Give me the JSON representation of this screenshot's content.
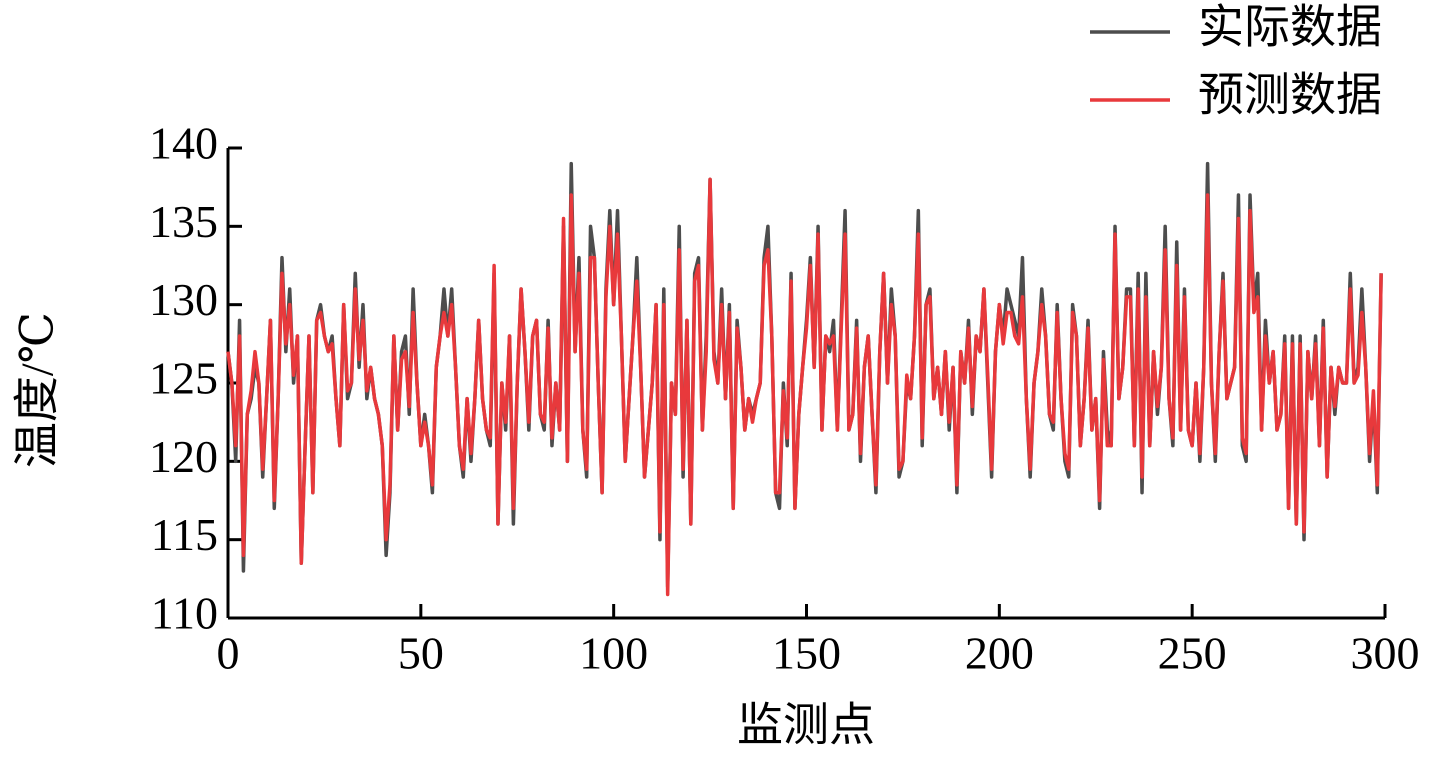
{
  "chart_data": {
    "type": "line",
    "xlabel": "监测点",
    "ylabel": "温度/℃",
    "xlim": [
      0,
      300
    ],
    "xticks": [
      0,
      50,
      100,
      150,
      200,
      250,
      300
    ],
    "ylim": [
      110,
      140
    ],
    "yticks": [
      110,
      115,
      120,
      125,
      130,
      135,
      140
    ],
    "legend": "upper right",
    "x": [
      0,
      1,
      2,
      3,
      4,
      5,
      6,
      7,
      8,
      9,
      10,
      11,
      12,
      13,
      14,
      15,
      16,
      17,
      18,
      19,
      20,
      21,
      22,
      23,
      24,
      25,
      26,
      27,
      28,
      29,
      30,
      31,
      32,
      33,
      34,
      35,
      36,
      37,
      38,
      39,
      40,
      41,
      42,
      43,
      44,
      45,
      46,
      47,
      48,
      49,
      50,
      51,
      52,
      53,
      54,
      55,
      56,
      57,
      58,
      59,
      60,
      61,
      62,
      63,
      64,
      65,
      66,
      67,
      68,
      69,
      70,
      71,
      72,
      73,
      74,
      75,
      76,
      77,
      78,
      79,
      80,
      81,
      82,
      83,
      84,
      85,
      86,
      87,
      88,
      89,
      90,
      91,
      92,
      93,
      94,
      95,
      96,
      97,
      98,
      99,
      100,
      101,
      102,
      103,
      104,
      105,
      106,
      107,
      108,
      109,
      110,
      111,
      112,
      113,
      114,
      115,
      116,
      117,
      118,
      119,
      120,
      121,
      122,
      123,
      124,
      125,
      126,
      127,
      128,
      129,
      130,
      131,
      132,
      133,
      134,
      135,
      136,
      137,
      138,
      139,
      140,
      141,
      142,
      143,
      144,
      145,
      146,
      147,
      148,
      149,
      150,
      151,
      152,
      153,
      154,
      155,
      156,
      157,
      158,
      159,
      160,
      161,
      162,
      163,
      164,
      165,
      166,
      167,
      168,
      169,
      170,
      171,
      172,
      173,
      174,
      175,
      176,
      177,
      178,
      179,
      180,
      181,
      182,
      183,
      184,
      185,
      186,
      187,
      188,
      189,
      190,
      191,
      192,
      193,
      194,
      195,
      196,
      197,
      198,
      199,
      200,
      201,
      202,
      203,
      204,
      205,
      206,
      207,
      208,
      209,
      210,
      211,
      212,
      213,
      214,
      215,
      216,
      217,
      218,
      219,
      220,
      221,
      222,
      223,
      224,
      225,
      226,
      227,
      228,
      229,
      230,
      231,
      232,
      233,
      234,
      235,
      236,
      237,
      238,
      239,
      240,
      241,
      242,
      243,
      244,
      245,
      246,
      247,
      248,
      249,
      250,
      251,
      252,
      253,
      254,
      255,
      256,
      257,
      258,
      259,
      260,
      261,
      262,
      263,
      264,
      265,
      266,
      267,
      268,
      269,
      270,
      271,
      272,
      273,
      274,
      275,
      276,
      277,
      278,
      279,
      280,
      281,
      282,
      283,
      284,
      285,
      286,
      287,
      288,
      289,
      290,
      291,
      292,
      293,
      294,
      295,
      296,
      297,
      298,
      299
    ],
    "series": [
      {
        "name": "实际数据",
        "color": "#4d4d4d",
        "values": [
          127,
          125,
          120,
          129,
          113,
          123,
          124,
          126,
          125,
          119,
          124,
          129,
          117,
          124,
          133,
          127,
          131,
          125,
          128,
          113.5,
          121,
          128,
          118,
          129,
          130,
          128,
          127,
          128,
          124,
          121,
          130,
          124,
          125,
          132,
          126,
          130,
          124,
          126,
          124,
          123,
          121,
          114,
          118,
          128,
          122,
          127,
          128,
          123,
          131,
          125,
          121,
          123,
          121,
          118,
          126,
          128,
          131,
          128,
          131,
          126,
          121,
          119,
          124,
          120,
          124,
          129,
          124,
          122,
          121,
          132,
          116,
          125,
          122,
          128,
          116,
          125,
          131,
          127,
          122,
          128,
          129,
          123,
          122,
          129,
          121,
          125,
          122,
          135,
          120,
          139,
          127,
          133,
          122,
          119,
          135,
          133,
          125,
          118,
          131,
          136,
          130,
          136,
          128,
          120,
          124,
          128,
          133,
          126,
          119,
          122,
          125,
          130,
          115,
          131,
          112,
          125,
          123,
          135,
          119,
          129,
          116,
          132,
          133,
          122,
          128,
          138,
          127,
          125,
          131,
          124,
          130,
          117,
          129,
          126,
          122,
          124,
          123,
          124,
          125,
          133,
          135,
          128,
          118,
          117,
          125,
          121,
          132,
          117,
          123,
          126,
          129,
          133,
          126,
          135,
          122,
          128,
          127,
          129,
          122,
          129,
          136,
          122,
          123,
          129,
          120,
          126,
          128,
          123,
          118,
          127,
          132,
          125,
          131,
          128,
          119,
          120,
          125,
          124,
          128,
          136,
          121,
          130,
          131,
          124,
          126,
          123,
          127,
          122,
          126,
          118,
          127,
          125,
          129,
          123,
          128,
          127,
          131,
          125,
          119,
          127,
          130,
          128,
          131,
          130,
          129,
          128,
          133,
          124,
          119,
          125,
          127,
          131,
          128,
          123,
          122,
          130,
          124,
          120,
          119,
          130,
          128,
          121,
          124,
          129,
          122,
          124,
          117,
          127,
          122,
          121,
          135,
          124,
          126,
          131,
          131,
          121,
          132,
          118,
          132,
          121,
          127,
          123,
          126,
          135,
          124,
          121,
          134,
          122,
          131,
          122,
          121,
          125,
          120,
          126,
          139,
          125,
          120,
          127,
          132,
          124,
          125,
          126,
          137,
          121,
          120,
          137,
          130,
          132,
          122,
          129,
          125,
          127,
          122,
          123,
          128,
          117,
          128,
          116,
          128,
          115,
          127,
          124,
          128,
          121,
          129,
          119,
          126,
          123,
          126,
          125,
          125,
          132,
          125,
          126,
          131,
          126,
          120,
          124,
          118,
          132
        ]
      },
      {
        "name": "预测数据",
        "color": "#e8393c",
        "values": [
          127,
          125,
          121,
          128,
          114,
          123,
          124.5,
          127,
          125,
          119.5,
          124,
          129,
          117.5,
          124,
          132,
          127.5,
          130,
          125.5,
          128,
          113.5,
          121,
          128,
          118,
          129,
          129.5,
          128,
          127,
          127.5,
          124,
          121,
          130,
          124.5,
          125,
          131,
          126.5,
          129,
          124.5,
          126,
          124,
          123,
          121,
          115,
          118.5,
          128,
          122,
          126.5,
          127,
          123.5,
          129.5,
          125,
          121,
          122.5,
          121,
          118.5,
          126,
          128,
          129.5,
          128,
          130,
          126,
          121,
          119.5,
          124,
          120.5,
          124,
          129,
          124,
          122,
          121.5,
          132.5,
          116,
          125,
          122.5,
          128,
          117,
          125,
          131,
          127,
          122.5,
          128,
          129,
          123,
          122.5,
          128.5,
          121.5,
          125,
          122,
          135.5,
          120,
          137,
          127,
          132,
          122,
          119.5,
          133,
          133,
          125,
          118,
          130.5,
          135,
          130,
          134.5,
          128,
          120,
          124,
          128,
          131.5,
          126,
          119,
          122,
          125,
          130,
          115.5,
          130,
          111.5,
          125,
          123,
          133.5,
          119.5,
          129,
          116,
          131.5,
          132.5,
          122,
          127,
          138,
          126.5,
          125,
          130,
          124,
          129.5,
          117,
          128.5,
          126,
          122,
          124,
          122.5,
          124,
          125,
          132.5,
          133.5,
          128,
          118,
          118,
          124.5,
          121.5,
          131.5,
          117,
          123,
          126,
          128.5,
          132.5,
          126,
          134.5,
          122,
          128,
          127.5,
          128,
          122,
          128.5,
          134.5,
          122,
          123,
          128.5,
          120.5,
          126,
          128,
          123,
          118.5,
          127,
          132,
          125,
          130,
          128,
          119.5,
          120,
          125.5,
          124,
          128,
          134.5,
          121.5,
          130,
          130.5,
          124,
          126,
          123,
          127,
          122.5,
          126,
          118.5,
          127,
          125,
          128.5,
          123.5,
          128,
          127,
          131,
          125.5,
          119.5,
          127,
          130,
          127.5,
          129.5,
          129.5,
          128,
          127.5,
          130.5,
          124,
          119.5,
          125,
          127,
          130,
          128,
          123,
          122.5,
          129.5,
          124,
          120.5,
          119.5,
          129.5,
          128,
          121,
          124,
          128.5,
          122,
          124,
          117.5,
          126.5,
          121,
          121,
          134.5,
          124,
          126,
          130.5,
          130.5,
          121,
          131,
          119,
          130.5,
          121,
          127,
          123.5,
          126,
          133.5,
          124,
          121.5,
          132.5,
          122,
          130.5,
          122,
          121,
          125,
          120.5,
          126,
          137,
          125,
          120.5,
          127,
          131.5,
          124,
          125,
          126,
          135.5,
          121.5,
          120.5,
          136,
          129.5,
          130.5,
          122,
          128,
          125,
          127,
          122,
          123,
          127.5,
          117,
          127.5,
          116,
          127.5,
          115.5,
          127,
          124,
          127.5,
          121,
          128.5,
          119,
          126,
          123.5,
          126,
          125,
          125,
          131,
          125,
          125.5,
          129.5,
          126,
          120.5,
          124.5,
          118.5,
          132
        ]
      }
    ]
  }
}
